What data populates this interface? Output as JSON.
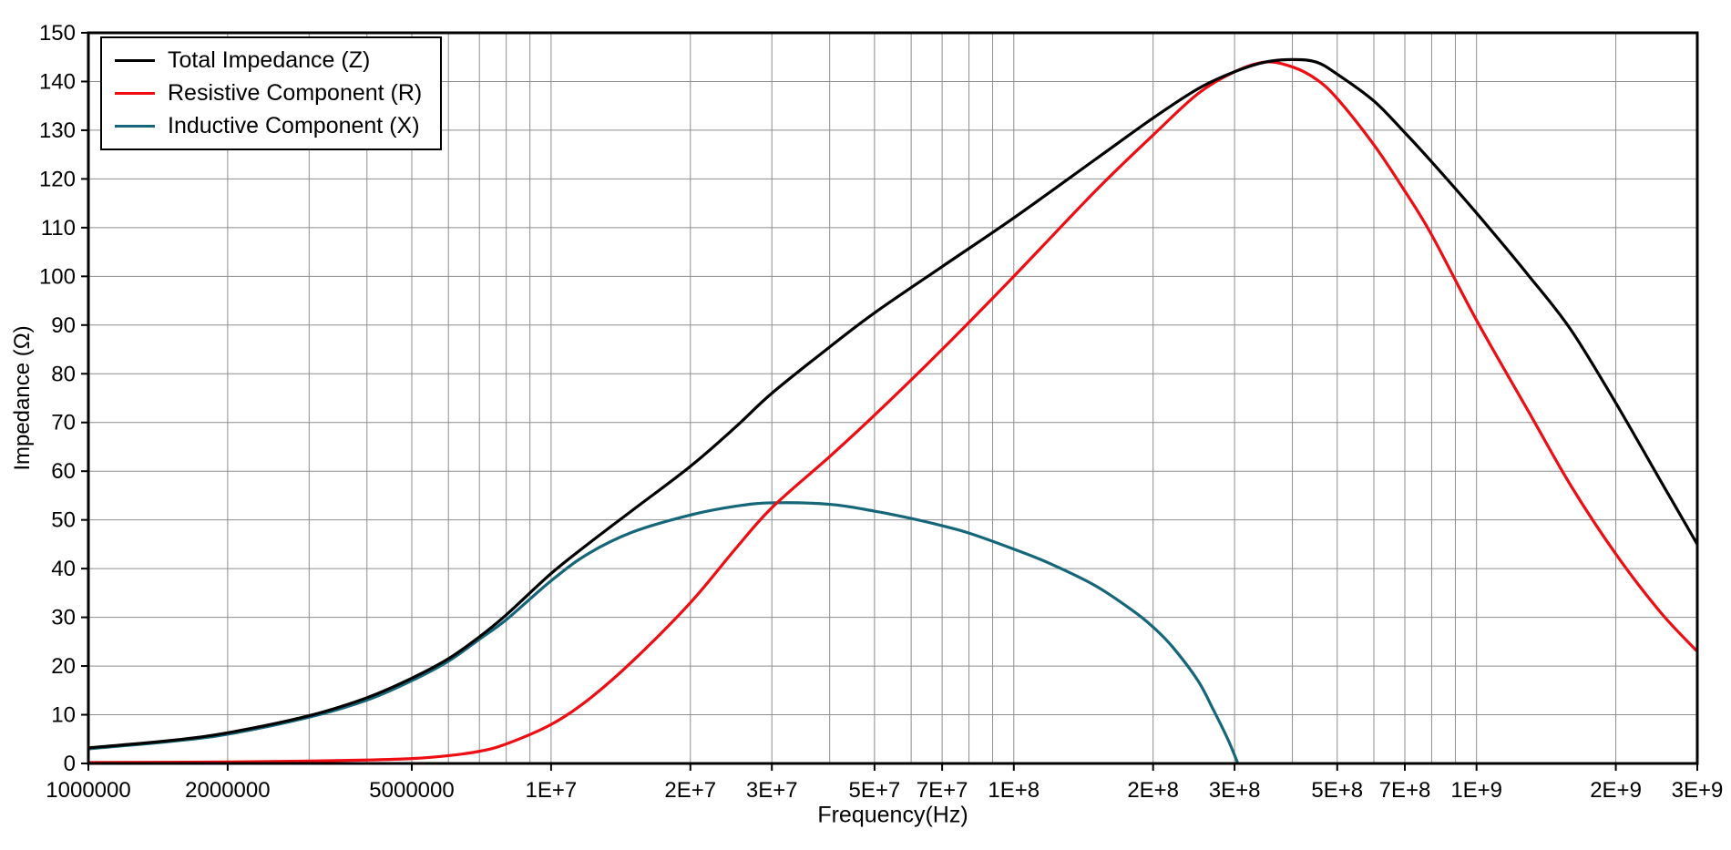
{
  "chart_data": {
    "type": "line",
    "title": "",
    "xlabel": "Frequency(Hz)",
    "ylabel": "Impedance (Ω)",
    "xscale": "log",
    "yscale": "linear",
    "xlim": [
      1000000,
      3000000000
    ],
    "ylim": [
      0,
      150
    ],
    "ytick_step": 10,
    "grid": true,
    "grid_color": "#8e8e8e",
    "axis_color": "#000000",
    "background_color": "#ffffff",
    "legend_position": "top-left",
    "xticks": [
      {
        "value": 1000000,
        "label": "1000000"
      },
      {
        "value": 2000000,
        "label": "2000000"
      },
      {
        "value": 5000000,
        "label": "5000000"
      },
      {
        "value": 10000000,
        "label": "1E+7"
      },
      {
        "value": 20000000,
        "label": "2E+7"
      },
      {
        "value": 30000000,
        "label": "3E+7"
      },
      {
        "value": 50000000,
        "label": "5E+7"
      },
      {
        "value": 70000000,
        "label": "7E+7"
      },
      {
        "value": 100000000,
        "label": "1E+8"
      },
      {
        "value": 200000000,
        "label": "2E+8"
      },
      {
        "value": 300000000,
        "label": "3E+8"
      },
      {
        "value": 500000000,
        "label": "5E+8"
      },
      {
        "value": 700000000,
        "label": "7E+8"
      },
      {
        "value": 1000000000,
        "label": "1E+9"
      },
      {
        "value": 2000000000,
        "label": "2E+9"
      },
      {
        "value": 3000000000,
        "label": "3E+9"
      }
    ],
    "series": [
      {
        "name": "Total Impedance (Z)",
        "color": "#000000",
        "points": [
          [
            1000000,
            3.2
          ],
          [
            1500000,
            4.7
          ],
          [
            2000000,
            6.3
          ],
          [
            3000000,
            9.8
          ],
          [
            4000000,
            13.5
          ],
          [
            5000000,
            17.5
          ],
          [
            6000000,
            21.5
          ],
          [
            7000000,
            26
          ],
          [
            8000000,
            30.5
          ],
          [
            10000000,
            39
          ],
          [
            12000000,
            45
          ],
          [
            15000000,
            52
          ],
          [
            20000000,
            61
          ],
          [
            25000000,
            69
          ],
          [
            30000000,
            76
          ],
          [
            40000000,
            85.5
          ],
          [
            50000000,
            92.5
          ],
          [
            70000000,
            102
          ],
          [
            100000000,
            112
          ],
          [
            150000000,
            124
          ],
          [
            200000000,
            132.5
          ],
          [
            250000000,
            138.5
          ],
          [
            300000000,
            142
          ],
          [
            350000000,
            144
          ],
          [
            400000000,
            144.5
          ],
          [
            450000000,
            144
          ],
          [
            500000000,
            141.5
          ],
          [
            600000000,
            136
          ],
          [
            700000000,
            129.5
          ],
          [
            800000000,
            123.5
          ],
          [
            1000000000,
            113
          ],
          [
            1300000000,
            100
          ],
          [
            1600000000,
            89
          ],
          [
            2000000000,
            74
          ],
          [
            2500000000,
            58
          ],
          [
            3000000000,
            45
          ]
        ]
      },
      {
        "name": "Resistive Component (R)",
        "color": "#ee0d12",
        "points": [
          [
            1000000,
            0.2
          ],
          [
            2000000,
            0.3
          ],
          [
            3000000,
            0.5
          ],
          [
            4000000,
            0.7
          ],
          [
            5000000,
            1.0
          ],
          [
            6000000,
            1.6
          ],
          [
            7000000,
            2.5
          ],
          [
            8000000,
            4
          ],
          [
            10000000,
            8
          ],
          [
            12000000,
            13
          ],
          [
            15000000,
            21
          ],
          [
            20000000,
            33
          ],
          [
            25000000,
            44
          ],
          [
            30000000,
            52.5
          ],
          [
            40000000,
            63
          ],
          [
            50000000,
            71.5
          ],
          [
            70000000,
            85
          ],
          [
            100000000,
            100
          ],
          [
            150000000,
            117.5
          ],
          [
            200000000,
            129
          ],
          [
            250000000,
            137.5
          ],
          [
            300000000,
            142
          ],
          [
            350000000,
            144
          ],
          [
            400000000,
            143
          ],
          [
            450000000,
            140.5
          ],
          [
            500000000,
            136.5
          ],
          [
            600000000,
            127
          ],
          [
            700000000,
            117.5
          ],
          [
            800000000,
            108.5
          ],
          [
            1000000000,
            91
          ],
          [
            1300000000,
            72
          ],
          [
            1600000000,
            57
          ],
          [
            2000000000,
            43
          ],
          [
            2500000000,
            31
          ],
          [
            3000000000,
            23
          ]
        ]
      },
      {
        "name": "Inductive Component (X)",
        "color": "#16667a",
        "points": [
          [
            1000000,
            3
          ],
          [
            1500000,
            4.5
          ],
          [
            2000000,
            6
          ],
          [
            3000000,
            9.5
          ],
          [
            4000000,
            13
          ],
          [
            5000000,
            17
          ],
          [
            6000000,
            21
          ],
          [
            7000000,
            25.5
          ],
          [
            8000000,
            29.5
          ],
          [
            10000000,
            37.5
          ],
          [
            12000000,
            43
          ],
          [
            15000000,
            47.5
          ],
          [
            20000000,
            51
          ],
          [
            25000000,
            52.8
          ],
          [
            30000000,
            53.5
          ],
          [
            40000000,
            53.2
          ],
          [
            50000000,
            51.8
          ],
          [
            60000000,
            50.3
          ],
          [
            70000000,
            48.8
          ],
          [
            80000000,
            47.3
          ],
          [
            100000000,
            44
          ],
          [
            120000000,
            41
          ],
          [
            150000000,
            36.5
          ],
          [
            180000000,
            31.5
          ],
          [
            200000000,
            28
          ],
          [
            220000000,
            24
          ],
          [
            250000000,
            17
          ],
          [
            270000000,
            11
          ],
          [
            290000000,
            5
          ],
          [
            305000000,
            0
          ]
        ]
      }
    ]
  }
}
